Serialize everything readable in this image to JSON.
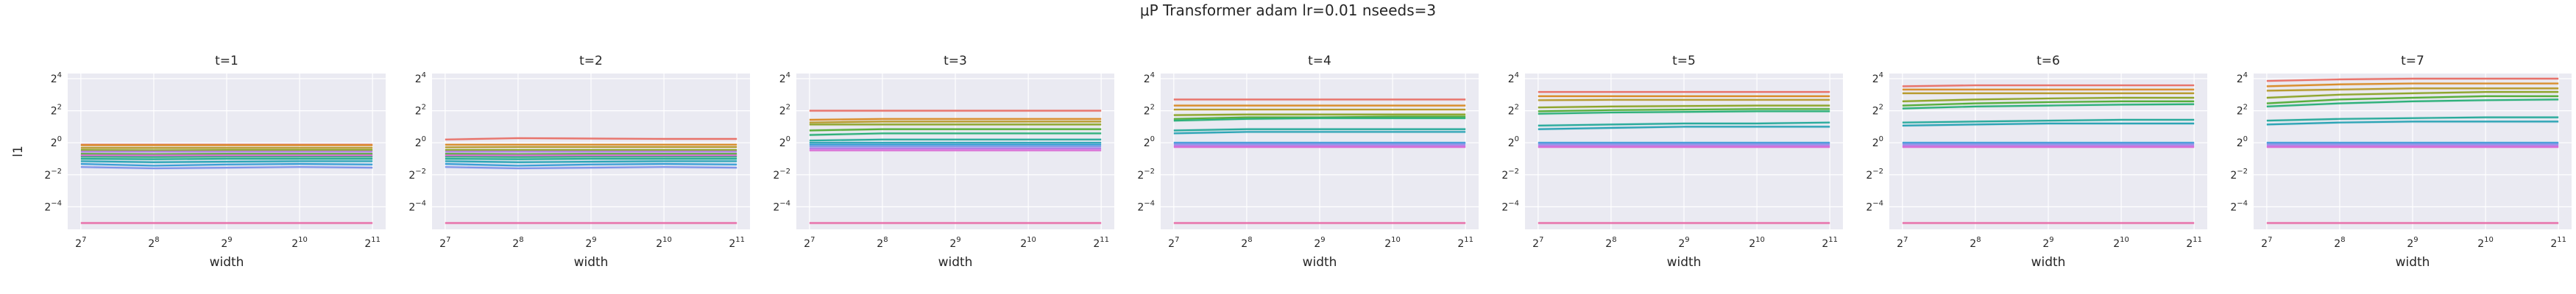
{
  "figure": {
    "title": "μP Transformer adam lr=0.01 nseeds=3"
  },
  "style": {
    "background": "#ffffff",
    "axes_face": "#eaeaf2",
    "grid": "#ffffff",
    "palette": [
      "#e8736b",
      "#d98d2b",
      "#b89b2f",
      "#8fa52c",
      "#57ae3b",
      "#2eb07a",
      "#2aab9c",
      "#2ca4b5",
      "#3a9fd6",
      "#7f95e8",
      "#b37fe6",
      "#d96fd6",
      "#e86aa6"
    ]
  },
  "chart_data": [
    {
      "type": "line",
      "title": "t=1",
      "xlabel": "width",
      "ylabel": "l1",
      "x": [
        128,
        256,
        512,
        1024,
        2048
      ],
      "xticks": [
        "2^7",
        "2^8",
        "2^9",
        "2^10",
        "2^11"
      ],
      "yticks": [
        "2^{-4}",
        "2^{-2}",
        "2^0",
        "2^2",
        "2^4"
      ],
      "xscale": "log2",
      "yscale": "log2",
      "ylim": [
        0.0236,
        20
      ],
      "grid": true,
      "series": [
        {
          "values": [
            0.92,
            0.92,
            0.92,
            0.92,
            0.92
          ]
        },
        {
          "values": [
            0.9,
            0.9,
            0.9,
            0.9,
            0.9
          ]
        },
        {
          "values": [
            0.8,
            0.8,
            0.8,
            0.8,
            0.8
          ]
        },
        {
          "values": [
            0.73,
            0.72,
            0.73,
            0.73,
            0.73
          ]
        },
        {
          "values": [
            0.62,
            0.61,
            0.62,
            0.62,
            0.62
          ]
        },
        {
          "values": [
            0.55,
            0.54,
            0.55,
            0.55,
            0.55
          ]
        },
        {
          "values": [
            0.5,
            0.49,
            0.5,
            0.5,
            0.5
          ]
        },
        {
          "values": [
            0.45,
            0.43,
            0.44,
            0.45,
            0.45
          ]
        },
        {
          "values": [
            0.4,
            0.37,
            0.39,
            0.4,
            0.39
          ]
        },
        {
          "values": [
            0.35,
            0.33,
            0.34,
            0.35,
            0.34
          ]
        },
        {
          "values": [
            0.68,
            0.68,
            0.68,
            0.68,
            0.68
          ]
        },
        {
          "values": [
            0.58,
            0.58,
            0.58,
            0.58,
            0.58
          ]
        },
        {
          "values": [
            0.031,
            0.031,
            0.031,
            0.031,
            0.031
          ]
        }
      ]
    },
    {
      "type": "line",
      "title": "t=2",
      "xlabel": "width",
      "ylabel": "",
      "x": [
        128,
        256,
        512,
        1024,
        2048
      ],
      "xticks": [
        "2^7",
        "2^8",
        "2^9",
        "2^10",
        "2^11"
      ],
      "yticks": [
        "2^{-4}",
        "2^{-2}",
        "2^0",
        "2^2",
        "2^4"
      ],
      "xscale": "log2",
      "yscale": "log2",
      "ylim": [
        0.0236,
        20
      ],
      "grid": true,
      "series": [
        {
          "values": [
            1.15,
            1.22,
            1.2,
            1.18,
            1.18
          ]
        },
        {
          "values": [
            0.92,
            0.92,
            0.92,
            0.92,
            0.92
          ]
        },
        {
          "values": [
            0.82,
            0.83,
            0.83,
            0.83,
            0.83
          ]
        },
        {
          "values": [
            0.73,
            0.73,
            0.73,
            0.73,
            0.73
          ]
        },
        {
          "values": [
            0.62,
            0.61,
            0.62,
            0.62,
            0.62
          ]
        },
        {
          "values": [
            0.55,
            0.54,
            0.55,
            0.55,
            0.55
          ]
        },
        {
          "values": [
            0.5,
            0.49,
            0.5,
            0.5,
            0.5
          ]
        },
        {
          "values": [
            0.45,
            0.43,
            0.44,
            0.45,
            0.45
          ]
        },
        {
          "values": [
            0.4,
            0.37,
            0.39,
            0.4,
            0.39
          ]
        },
        {
          "values": [
            0.35,
            0.33,
            0.34,
            0.35,
            0.34
          ]
        },
        {
          "values": [
            0.68,
            0.68,
            0.68,
            0.68,
            0.68
          ]
        },
        {
          "values": [
            0.58,
            0.58,
            0.58,
            0.58,
            0.58
          ]
        },
        {
          "values": [
            0.031,
            0.031,
            0.031,
            0.031,
            0.031
          ]
        }
      ]
    },
    {
      "type": "line",
      "title": "t=3",
      "xlabel": "width",
      "ylabel": "",
      "x": [
        128,
        256,
        512,
        1024,
        2048
      ],
      "xticks": [
        "2^7",
        "2^8",
        "2^9",
        "2^10",
        "2^11"
      ],
      "yticks": [
        "2^{-4}",
        "2^{-2}",
        "2^0",
        "2^2",
        "2^4"
      ],
      "xscale": "log2",
      "yscale": "log2",
      "ylim": [
        0.0236,
        20
      ],
      "grid": true,
      "series": [
        {
          "values": [
            4.0,
            4.0,
            4.0,
            4.0,
            4.0
          ]
        },
        {
          "values": [
            2.7,
            2.8,
            2.8,
            2.8,
            2.8
          ]
        },
        {
          "values": [
            2.4,
            2.5,
            2.5,
            2.5,
            2.5
          ]
        },
        {
          "values": [
            2.2,
            2.2,
            2.2,
            2.2,
            2.2
          ]
        },
        {
          "values": [
            1.7,
            1.8,
            1.8,
            1.8,
            1.8
          ]
        },
        {
          "values": [
            1.4,
            1.5,
            1.5,
            1.5,
            1.5
          ]
        },
        {
          "values": [
            1.1,
            1.15,
            1.15,
            1.15,
            1.15
          ]
        },
        {
          "values": [
            1.0,
            1.0,
            1.0,
            1.0,
            1.0
          ]
        },
        {
          "values": [
            0.92,
            0.92,
            0.92,
            0.92,
            0.92
          ]
        },
        {
          "values": [
            0.85,
            0.85,
            0.85,
            0.85,
            0.85
          ]
        },
        {
          "values": [
            0.78,
            0.78,
            0.78,
            0.78,
            0.78
          ]
        },
        {
          "values": [
            0.72,
            0.72,
            0.72,
            0.72,
            0.72
          ]
        },
        {
          "values": [
            0.031,
            0.031,
            0.031,
            0.031,
            0.031
          ]
        }
      ]
    },
    {
      "type": "line",
      "title": "t=4",
      "xlabel": "width",
      "ylabel": "",
      "x": [
        128,
        256,
        512,
        1024,
        2048
      ],
      "xticks": [
        "2^7",
        "2^8",
        "2^9",
        "2^10",
        "2^11"
      ],
      "yticks": [
        "2^{-4}",
        "2^{-2}",
        "2^0",
        "2^2",
        "2^4"
      ],
      "xscale": "log2",
      "yscale": "log2",
      "ylim": [
        0.0236,
        20
      ],
      "grid": true,
      "series": [
        {
          "values": [
            6.5,
            6.5,
            6.5,
            6.5,
            6.5
          ]
        },
        {
          "values": [
            5.0,
            5.0,
            5.0,
            5.0,
            5.0
          ]
        },
        {
          "values": [
            4.2,
            4.2,
            4.2,
            4.2,
            4.2
          ]
        },
        {
          "values": [
            3.3,
            3.4,
            3.4,
            3.4,
            3.4
          ]
        },
        {
          "values": [
            2.8,
            3.0,
            3.0,
            3.1,
            3.1
          ]
        },
        {
          "values": [
            2.6,
            2.8,
            2.9,
            2.9,
            2.9
          ]
        },
        {
          "values": [
            1.7,
            1.8,
            1.8,
            1.8,
            1.8
          ]
        },
        {
          "values": [
            1.5,
            1.6,
            1.6,
            1.6,
            1.6
          ]
        },
        {
          "values": [
            1.0,
            1.0,
            1.0,
            1.0,
            1.0
          ]
        },
        {
          "values": [
            0.95,
            0.95,
            0.95,
            0.95,
            0.95
          ]
        },
        {
          "values": [
            0.88,
            0.88,
            0.88,
            0.88,
            0.88
          ]
        },
        {
          "values": [
            0.83,
            0.83,
            0.83,
            0.83,
            0.83
          ]
        },
        {
          "values": [
            0.031,
            0.031,
            0.031,
            0.031,
            0.031
          ]
        }
      ]
    },
    {
      "type": "line",
      "title": "t=5",
      "xlabel": "width",
      "ylabel": "",
      "x": [
        128,
        256,
        512,
        1024,
        2048
      ],
      "xticks": [
        "2^7",
        "2^8",
        "2^9",
        "2^10",
        "2^11"
      ],
      "yticks": [
        "2^{-4}",
        "2^{-2}",
        "2^0",
        "2^2",
        "2^4"
      ],
      "xscale": "log2",
      "yscale": "log2",
      "ylim": [
        0.0236,
        20
      ],
      "grid": true,
      "series": [
        {
          "values": [
            9.0,
            9.0,
            9.0,
            9.0,
            9.0
          ]
        },
        {
          "values": [
            7.5,
            7.5,
            7.5,
            7.5,
            7.5
          ]
        },
        {
          "values": [
            6.3,
            6.4,
            6.4,
            6.4,
            6.4
          ]
        },
        {
          "values": [
            4.6,
            4.8,
            4.9,
            5.0,
            5.0
          ]
        },
        {
          "values": [
            3.9,
            4.1,
            4.2,
            4.3,
            4.3
          ]
        },
        {
          "values": [
            3.5,
            3.7,
            3.8,
            3.9,
            3.9
          ]
        },
        {
          "values": [
            2.1,
            2.2,
            2.3,
            2.3,
            2.4
          ]
        },
        {
          "values": [
            1.8,
            1.9,
            2.0,
            2.0,
            2.0
          ]
        },
        {
          "values": [
            1.0,
            1.0,
            1.0,
            1.0,
            1.0
          ]
        },
        {
          "values": [
            0.95,
            0.95,
            0.95,
            0.95,
            0.95
          ]
        },
        {
          "values": [
            0.88,
            0.88,
            0.88,
            0.88,
            0.88
          ]
        },
        {
          "values": [
            0.83,
            0.83,
            0.83,
            0.83,
            0.83
          ]
        },
        {
          "values": [
            0.031,
            0.031,
            0.031,
            0.031,
            0.031
          ]
        }
      ]
    },
    {
      "type": "line",
      "title": "t=6",
      "xlabel": "width",
      "ylabel": "",
      "x": [
        128,
        256,
        512,
        1024,
        2048
      ],
      "xticks": [
        "2^7",
        "2^8",
        "2^9",
        "2^10",
        "2^11"
      ],
      "yticks": [
        "2^{-4}",
        "2^{-2}",
        "2^0",
        "2^2",
        "2^4"
      ],
      "xscale": "log2",
      "yscale": "log2",
      "ylim": [
        0.0236,
        20
      ],
      "grid": true,
      "series": [
        {
          "values": [
            11.5,
            12.0,
            12.0,
            12.0,
            12.0
          ]
        },
        {
          "values": [
            10.0,
            10.0,
            10.0,
            10.0,
            10.0
          ]
        },
        {
          "values": [
            8.5,
            8.5,
            8.5,
            8.5,
            8.5
          ]
        },
        {
          "values": [
            6.0,
            6.5,
            6.8,
            7.0,
            7.0
          ]
        },
        {
          "values": [
            5.0,
            5.5,
            5.8,
            6.0,
            6.0
          ]
        },
        {
          "values": [
            4.4,
            4.8,
            5.0,
            5.2,
            5.3
          ]
        },
        {
          "values": [
            2.4,
            2.5,
            2.6,
            2.7,
            2.7
          ]
        },
        {
          "values": [
            2.1,
            2.2,
            2.3,
            2.3,
            2.3
          ]
        },
        {
          "values": [
            1.0,
            1.0,
            1.0,
            1.0,
            1.0
          ]
        },
        {
          "values": [
            0.95,
            0.95,
            0.95,
            0.95,
            0.95
          ]
        },
        {
          "values": [
            0.88,
            0.88,
            0.88,
            0.88,
            0.88
          ]
        },
        {
          "values": [
            0.83,
            0.83,
            0.83,
            0.83,
            0.83
          ]
        },
        {
          "values": [
            0.031,
            0.031,
            0.031,
            0.031,
            0.031
          ]
        }
      ]
    },
    {
      "type": "line",
      "title": "t=7",
      "xlabel": "width",
      "ylabel": "",
      "x": [
        128,
        256,
        512,
        1024,
        2048
      ],
      "xticks": [
        "2^7",
        "2^8",
        "2^9",
        "2^10",
        "2^11"
      ],
      "yticks": [
        "2^{-4}",
        "2^{-2}",
        "2^0",
        "2^2",
        "2^4"
      ],
      "xscale": "log2",
      "yscale": "log2",
      "ylim": [
        0.0236,
        20
      ],
      "grid": true,
      "series": [
        {
          "values": [
            14.5,
            15.5,
            16.0,
            16.0,
            16.0
          ]
        },
        {
          "values": [
            11.5,
            12.5,
            13.0,
            13.0,
            13.0
          ]
        },
        {
          "values": [
            9.5,
            10.0,
            10.5,
            10.5,
            10.5
          ]
        },
        {
          "values": [
            7.0,
            8.0,
            8.5,
            9.0,
            9.0
          ]
        },
        {
          "values": [
            5.5,
            6.5,
            7.0,
            7.5,
            7.5
          ]
        },
        {
          "values": [
            4.8,
            5.5,
            6.0,
            6.3,
            6.5
          ]
        },
        {
          "values": [
            2.6,
            2.8,
            2.9,
            3.0,
            3.0
          ]
        },
        {
          "values": [
            2.2,
            2.4,
            2.5,
            2.5,
            2.5
          ]
        },
        {
          "values": [
            1.0,
            1.0,
            1.0,
            1.0,
            1.0
          ]
        },
        {
          "values": [
            0.95,
            0.95,
            0.95,
            0.95,
            0.95
          ]
        },
        {
          "values": [
            0.88,
            0.88,
            0.88,
            0.88,
            0.88
          ]
        },
        {
          "values": [
            0.83,
            0.83,
            0.83,
            0.83,
            0.83
          ]
        },
        {
          "values": [
            0.031,
            0.031,
            0.031,
            0.031,
            0.031
          ]
        }
      ]
    }
  ]
}
